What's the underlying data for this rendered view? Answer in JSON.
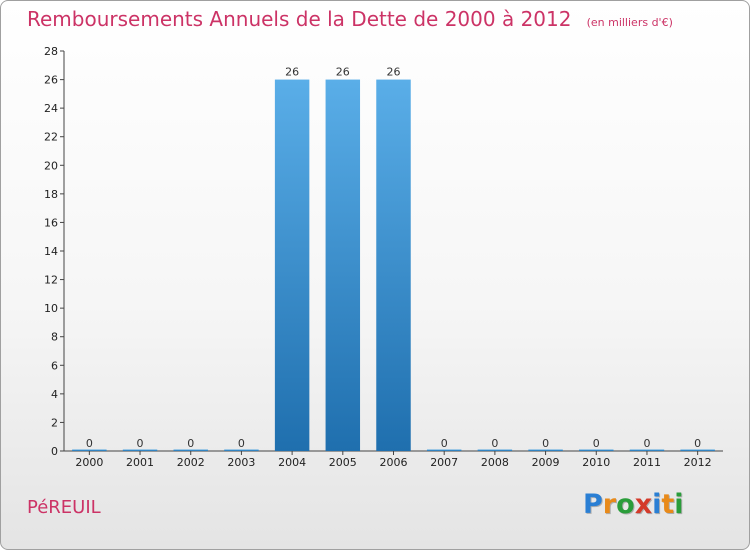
{
  "title": "Remboursements Annuels de la Dette de 2000 à 2012",
  "unit_note": "(en milliers d'€)",
  "commune": "PéREUIL",
  "logo": [
    "P",
    "r",
    "o",
    "x",
    "i",
    "t",
    "i"
  ],
  "colors": {
    "title": "#cc3366",
    "bar_top": "#5aaee8",
    "bar_bottom": "#1f6fae",
    "logo": [
      "#2a7fd4",
      "#e88a1a",
      "#2a9d3a",
      "#d43a2a",
      "#2a7fd4",
      "#e88a1a",
      "#2a9d3a"
    ]
  },
  "chart_data": {
    "type": "bar",
    "title": "Remboursements Annuels de la Dette de 2000 à 2012",
    "ylabel": "en milliers d'€",
    "categories": [
      "2000",
      "2001",
      "2002",
      "2003",
      "2004",
      "2005",
      "2006",
      "2007",
      "2008",
      "2009",
      "2010",
      "2011",
      "2012"
    ],
    "values": [
      0,
      0,
      0,
      0,
      26,
      26,
      26,
      0,
      0,
      0,
      0,
      0,
      0
    ],
    "ylim": [
      0,
      28
    ],
    "yticks": [
      0,
      2,
      4,
      6,
      8,
      10,
      12,
      14,
      16,
      18,
      20,
      22,
      24,
      26,
      28
    ],
    "grid": false
  }
}
